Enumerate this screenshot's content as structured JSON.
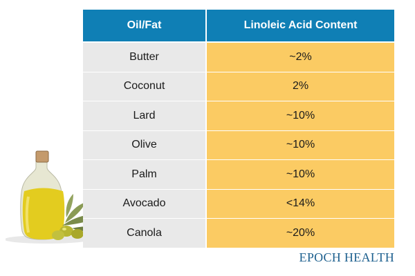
{
  "table": {
    "headers": [
      "Oil/Fat",
      "Linoleic Acid Content"
    ],
    "rows": [
      {
        "oil": "Butter",
        "content": "~2%"
      },
      {
        "oil": "Coconut",
        "content": "2%"
      },
      {
        "oil": "Lard",
        "content": "~10%"
      },
      {
        "oil": "Olive",
        "content": "~10%"
      },
      {
        "oil": "Palm",
        "content": "~10%"
      },
      {
        "oil": "Avocado",
        "content": "<14%"
      },
      {
        "oil": "Canola",
        "content": "~20%"
      }
    ]
  },
  "brand": "EPOCH HEALTH",
  "colors": {
    "header": "#0f7fb5",
    "oil_cell": "#e9e9e9",
    "content_cell": "#fbcb63",
    "brand": "#1c5f8e"
  },
  "icons": [
    "olive-oil-bottle-image",
    "olive-branch-image"
  ]
}
